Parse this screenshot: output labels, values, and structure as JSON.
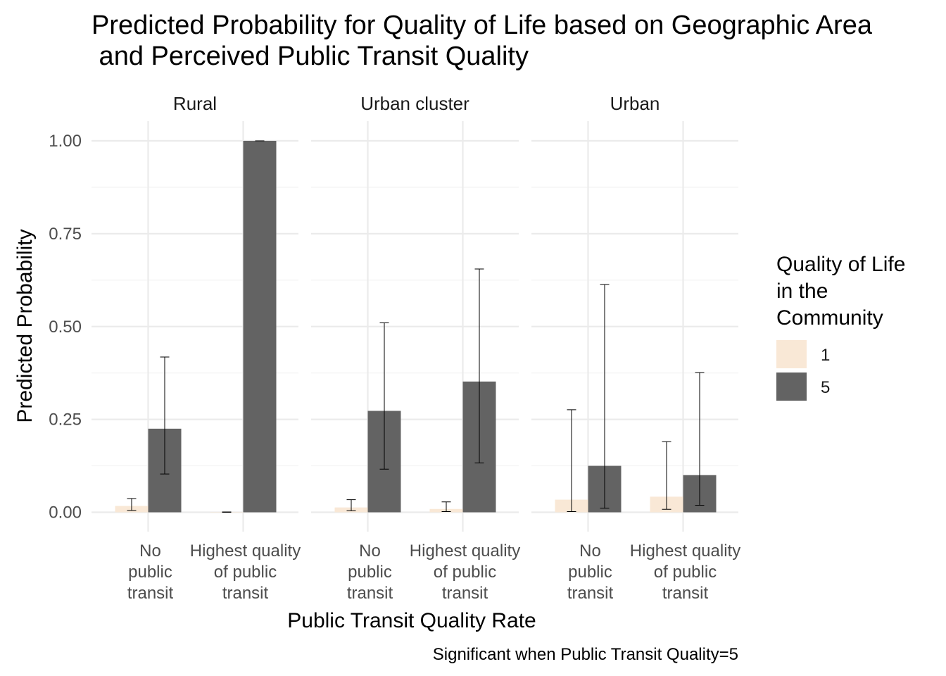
{
  "chart_data": {
    "type": "bar",
    "title": "Predicted Probability for Quality of Life based on Geographic Area\n and Perceived Public Transit Quality",
    "xlabel": "Public Transit Quality Rate",
    "ylabel": "Predicted Probability",
    "caption": "Significant when Public Transit Quality=5",
    "ylim": [
      0,
      1
    ],
    "y_ticks": [
      "0.00",
      "0.25",
      "0.50",
      "0.75",
      "1.00"
    ],
    "grid": true,
    "legend": {
      "title": "Quality of Life\nin the\nCommunity",
      "position": "right",
      "entries": [
        {
          "label": "1",
          "color": "#f9e8d6"
        },
        {
          "label": "5",
          "color": "#636363"
        }
      ]
    },
    "categories": [
      "No\npublic\ntransit",
      "Highest quality\nof public\ntransit"
    ],
    "panels": [
      {
        "name": "Rural",
        "series": [
          {
            "name": "1",
            "values": [
              0.017,
              0.001
            ],
            "lower": [
              0.005,
              0.0
            ],
            "upper": [
              0.037,
              0.001
            ]
          },
          {
            "name": "5",
            "values": [
              0.225,
              1.0
            ],
            "lower": [
              0.103,
              1.0
            ],
            "upper": [
              0.418,
              1.0
            ]
          }
        ]
      },
      {
        "name": "Urban cluster",
        "series": [
          {
            "name": "1",
            "values": [
              0.013,
              0.009
            ],
            "lower": [
              0.004,
              0.002
            ],
            "upper": [
              0.034,
              0.028
            ]
          },
          {
            "name": "5",
            "values": [
              0.273,
              0.352
            ],
            "lower": [
              0.116,
              0.133
            ],
            "upper": [
              0.51,
              0.655
            ]
          }
        ]
      },
      {
        "name": "Urban",
        "series": [
          {
            "name": "1",
            "values": [
              0.034,
              0.042
            ],
            "lower": [
              0.002,
              0.008
            ],
            "upper": [
              0.276,
              0.19
            ]
          },
          {
            "name": "5",
            "values": [
              0.125,
              0.1
            ],
            "lower": [
              0.011,
              0.019
            ],
            "upper": [
              0.613,
              0.376
            ]
          }
        ]
      }
    ]
  }
}
